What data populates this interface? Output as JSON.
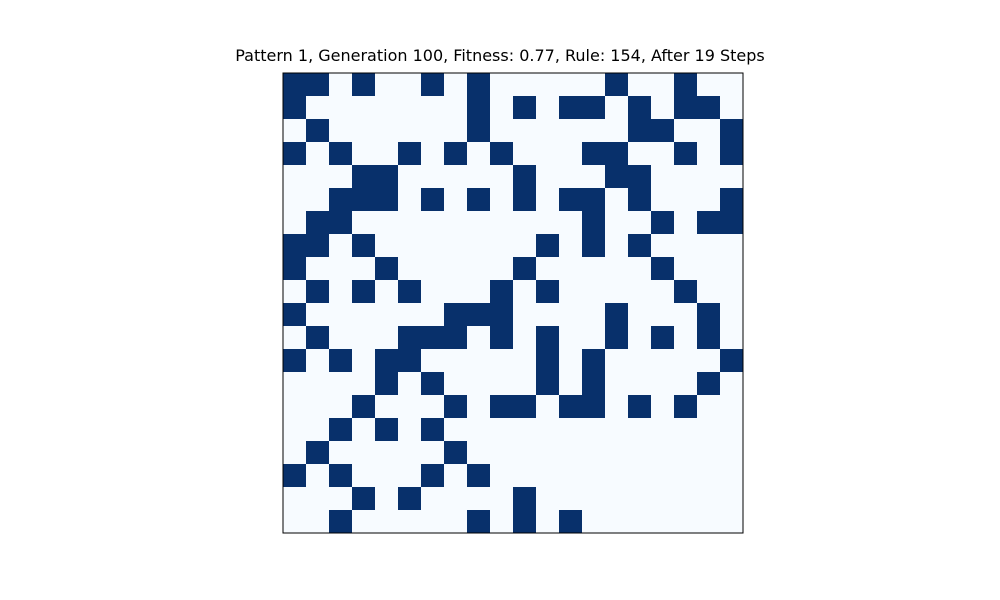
{
  "chart_data": {
    "type": "heatmap",
    "title": "Pattern 1, Generation 100, Fitness: 0.77, Rule: 154, After 19 Steps",
    "xlabel": "",
    "ylabel": "",
    "axes_visible": false,
    "grid": false,
    "colormap": "Blues",
    "colors": {
      "on": "#08306b",
      "off": "#f7fbff",
      "frame": "#000000"
    },
    "rows": 20,
    "cols": 20,
    "cells": [
      "11010010100000100100",
      "10000000101011010110",
      "01000000100000011001",
      "10100101010001100101",
      "00011000001000110000",
      "00111010101011010001",
      "01100000000001001011",
      "11010000000101010000",
      "10001000001000001000",
      "01010100010100000100",
      "10000001110000100010",
      "01000111010100101010",
      "10101100000101000001",
      "00001010000101000010",
      "00010001011011010100",
      "00101010000000000000",
      "01000001000000000000",
      "10100010100000000000",
      "00010100001000000000",
      "00100000101010000000"
    ]
  }
}
